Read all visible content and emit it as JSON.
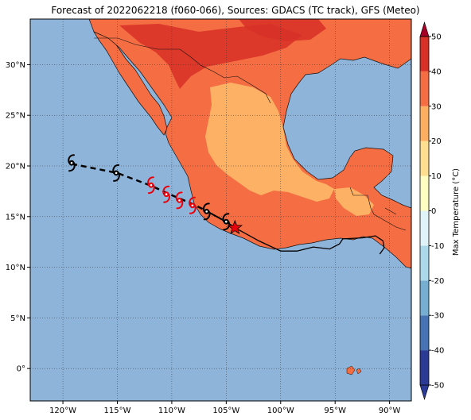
{
  "title": "Forecast of 2022062218 (f060-066), Sources: GDACS (TC track), GFS (Meteo)",
  "map": {
    "lon_range": [
      -123,
      -88
    ],
    "lat_range": [
      -3.2,
      34.5
    ],
    "lon_ticks": [
      {
        "value": -120,
        "label": "120°W"
      },
      {
        "value": -115,
        "label": "115°W"
      },
      {
        "value": -110,
        "label": "110°W"
      },
      {
        "value": -105,
        "label": "105°W"
      },
      {
        "value": -100,
        "label": "100°W"
      },
      {
        "value": -95,
        "label": "95°W"
      },
      {
        "value": -90,
        "label": "90°W"
      }
    ],
    "lat_ticks": [
      {
        "value": 30,
        "label": "30°N"
      },
      {
        "value": 25,
        "label": "25°N"
      },
      {
        "value": 20,
        "label": "20°N"
      },
      {
        "value": 15,
        "label": "15°N"
      },
      {
        "value": 10,
        "label": "10°N"
      },
      {
        "value": 5,
        "label": "5°N"
      },
      {
        "value": 0,
        "label": "0°"
      }
    ],
    "ocean_color": "#8fb4da",
    "gridlines": "dotted",
    "track": {
      "forecast_dashed": [
        [
          -119.2,
          20.2
        ],
        [
          -115.0,
          19.3
        ],
        [
          -111.8,
          18.0
        ],
        [
          -110.2,
          17.2
        ],
        [
          -108.0,
          16.2
        ],
        [
          -106.9,
          15.6
        ]
      ],
      "observed_solid": [
        [
          -106.9,
          15.6
        ],
        [
          -105.2,
          14.6
        ],
        [
          -104.2,
          13.9
        ]
      ],
      "symbols": [
        {
          "lon": -119.2,
          "lat": 20.3,
          "color": "#000000"
        },
        {
          "lon": -115.1,
          "lat": 19.3,
          "color": "#000000"
        },
        {
          "lon": -111.9,
          "lat": 18.1,
          "color": "#e8000b"
        },
        {
          "lon": -110.5,
          "lat": 17.2,
          "color": "#e8000b"
        },
        {
          "lon": -109.3,
          "lat": 16.6,
          "color": "#e8000b"
        },
        {
          "lon": -108.1,
          "lat": 16.1,
          "color": "#e8000b"
        },
        {
          "lon": -106.8,
          "lat": 15.5,
          "color": "#000000"
        },
        {
          "lon": -105.0,
          "lat": 14.5,
          "color": "#000000"
        }
      ],
      "current_position": {
        "lon": -104.2,
        "lat": 13.9,
        "color": "#e8000b"
      }
    },
    "swath_line": [
      [
        -104.2,
        13.9
      ],
      [
        -102.0,
        12.6
      ],
      [
        -100.0,
        11.6
      ],
      [
        -98.5,
        11.6
      ],
      [
        -97.0,
        12.0
      ],
      [
        -95.5,
        11.8
      ],
      [
        -94.6,
        12.3
      ],
      [
        -94.3,
        12.8
      ],
      [
        -92.5,
        12.9
      ],
      [
        -91.3,
        13.1
      ],
      [
        -90.6,
        12.6
      ],
      [
        -90.5,
        11.9
      ],
      [
        -90.9,
        11.3
      ]
    ]
  },
  "colorbar": {
    "label": "Max Temperature (°C)",
    "levels": [
      -50,
      -40,
      -30,
      -20,
      -10,
      0,
      10,
      20,
      30,
      40,
      50
    ],
    "colors": [
      "#2a3a95",
      "#4573b4",
      "#75aed1",
      "#abd9e9",
      "#e0f3f8",
      "#fefec0",
      "#fedf90",
      "#fcae61",
      "#f46d43",
      "#d73027",
      "#a50026"
    ],
    "over_color": "#a50026",
    "under_color": "#2a3a95"
  }
}
